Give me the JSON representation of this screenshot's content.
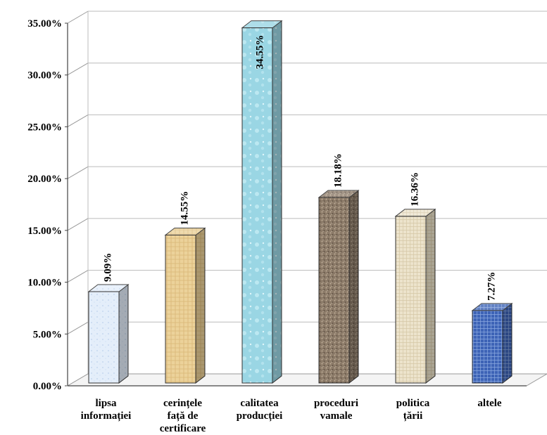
{
  "chart_data": {
    "type": "bar",
    "title": "",
    "xlabel": "",
    "ylabel": "",
    "ylim": [
      0,
      35
    ],
    "yticks": [
      "0.00%",
      "5.00%",
      "10.00%",
      "15.00%",
      "20.00%",
      "25.00%",
      "30.00%",
      "35.00%"
    ],
    "grid": true,
    "legend": "none",
    "categories": [
      [
        "lipsa",
        "informației"
      ],
      [
        "cerințele",
        "față de",
        "certificare"
      ],
      [
        "calitatea",
        "producției"
      ],
      [
        "proceduri",
        "vamale"
      ],
      [
        "politica",
        "țării"
      ],
      [
        "altele"
      ]
    ],
    "values": [
      9.09,
      14.55,
      34.55,
      18.18,
      16.36,
      7.27
    ],
    "data_labels": [
      "9.09%",
      "14.55%",
      "34.55%",
      "18.18%",
      "16.36%",
      "7.27%"
    ],
    "colors": [
      "#dce9f8",
      "#e6c88a",
      "#8fd0de",
      "#8a7a6a",
      "#e9dfc6",
      "#3a5fb0"
    ]
  }
}
